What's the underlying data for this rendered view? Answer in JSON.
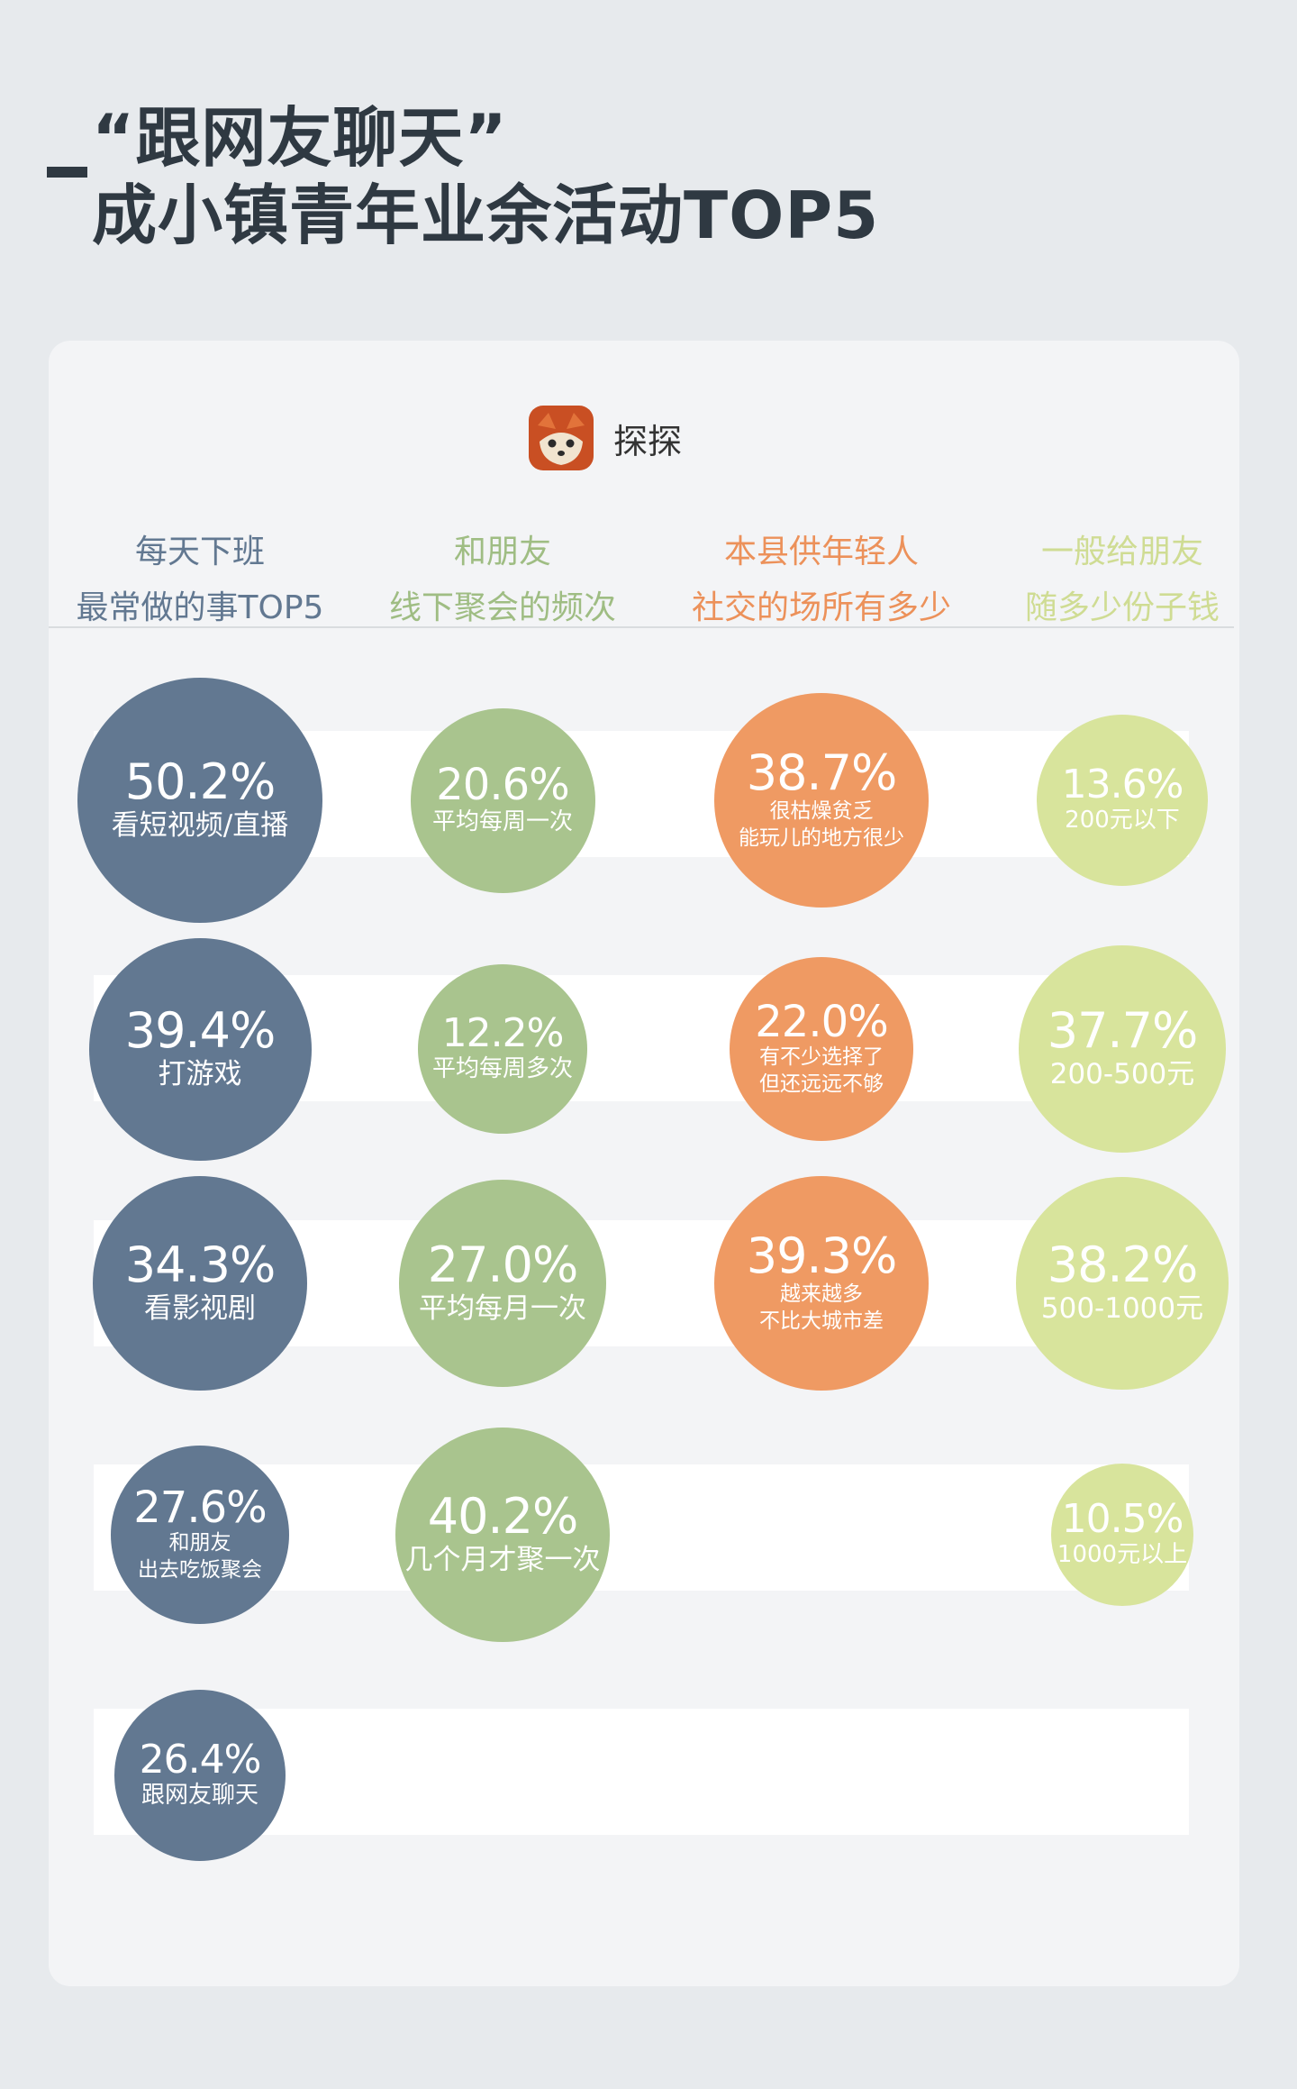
{
  "header": {
    "title_line1": "“跟网友聊天”",
    "title_line2": "成小镇青年业余活动TOP5"
  },
  "brand": {
    "name": "探探",
    "icon": "fox-logo-icon"
  },
  "colors": {
    "title": "#2f3942",
    "col1": "#627891",
    "col2": "#a9c48e",
    "col3": "#ef9a63",
    "col4": "#d8e49c"
  },
  "columns": [
    {
      "head": [
        "每天下班",
        "最常做的事TOP5"
      ],
      "head_color": "#627891"
    },
    {
      "head": [
        "和朋友",
        "线下聚会的频次"
      ],
      "head_color": "#9fbd83"
    },
    {
      "head": [
        "本县供年轻人",
        "社交的场所有多少"
      ],
      "head_color": "#ec915a"
    },
    {
      "head": [
        "一般给朋友",
        "随多少份子钱"
      ],
      "head_color": "#cfdc93"
    }
  ],
  "chart_data": {
    "type": "bubble",
    "unit": "%",
    "groups": [
      {
        "title": "每天下班最常做的事TOP5",
        "items": [
          {
            "value": 50.2,
            "pct": "50.2%",
            "label": [
              "看短视频/直播"
            ]
          },
          {
            "value": 39.4,
            "pct": "39.4%",
            "label": [
              "打游戏"
            ]
          },
          {
            "value": 34.3,
            "pct": "34.3%",
            "label": [
              "看影视剧"
            ]
          },
          {
            "value": 27.6,
            "pct": "27.6%",
            "label": [
              "和朋友",
              "出去吃饭聚会"
            ]
          },
          {
            "value": 26.4,
            "pct": "26.4%",
            "label": [
              "跟网友聊天"
            ]
          }
        ]
      },
      {
        "title": "和朋友线下聚会的频次",
        "items": [
          {
            "value": 20.6,
            "pct": "20.6%",
            "label": [
              "平均每周一次"
            ]
          },
          {
            "value": 12.2,
            "pct": "12.2%",
            "label": [
              "平均每周多次"
            ]
          },
          {
            "value": 27.0,
            "pct": "27.0%",
            "label": [
              "平均每月一次"
            ]
          },
          {
            "value": 40.2,
            "pct": "40.2%",
            "label": [
              "几个月才聚一次"
            ]
          }
        ]
      },
      {
        "title": "本县供年轻人社交的场所有多少",
        "items": [
          {
            "value": 38.7,
            "pct": "38.7%",
            "label": [
              "很枯燥贫乏",
              "能玩儿的地方很少"
            ]
          },
          {
            "value": 22.0,
            "pct": "22.0%",
            "label": [
              "有不少选择了",
              "但还远远不够"
            ]
          },
          {
            "value": 39.3,
            "pct": "39.3%",
            "label": [
              "越来越多",
              "不比大城市差"
            ]
          }
        ]
      },
      {
        "title": "一般给朋友随多少份子钱",
        "items": [
          {
            "value": 13.6,
            "pct": "13.6%",
            "label": [
              "200元以下"
            ]
          },
          {
            "value": 37.7,
            "pct": "37.7%",
            "label": [
              "200-500元"
            ]
          },
          {
            "value": 38.2,
            "pct": "38.2%",
            "label": [
              "500-1000元"
            ]
          },
          {
            "value": 10.5,
            "pct": "10.5%",
            "label": [
              "1000元以上"
            ]
          }
        ]
      }
    ]
  }
}
